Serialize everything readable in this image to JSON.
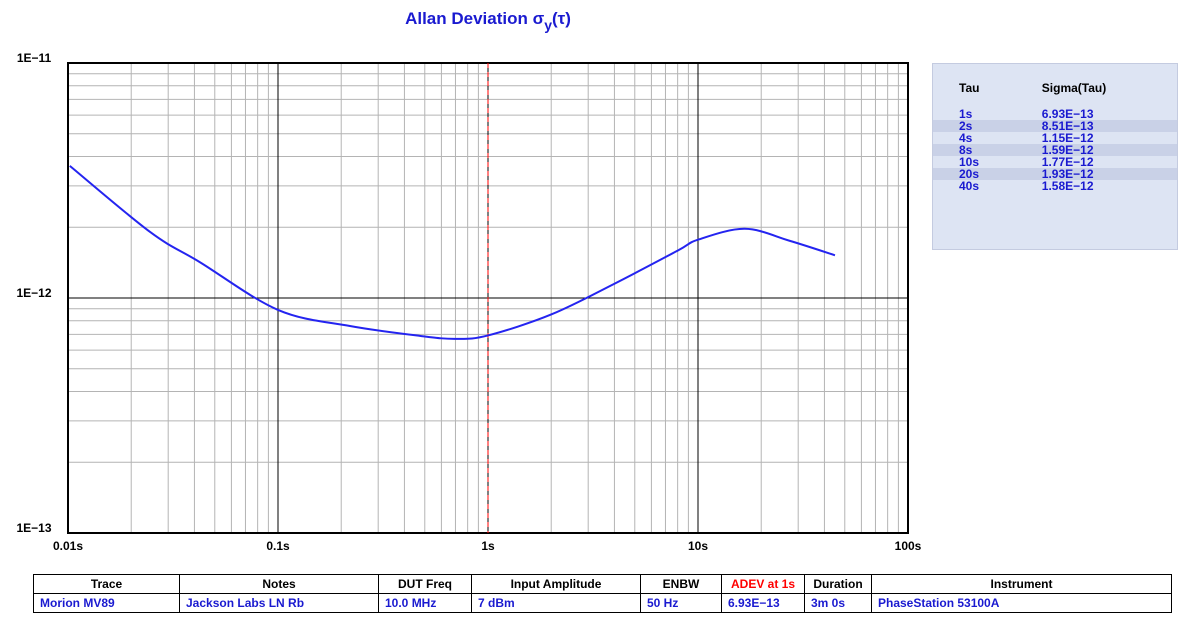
{
  "chart_data": {
    "type": "line",
    "title": [
      "Allan Deviation σ",
      "y",
      "(τ)"
    ],
    "log_x": true,
    "log_y": true,
    "grid": true,
    "minor_grid": true,
    "x": [
      0.0102,
      0.0246,
      0.0425,
      0.1,
      0.22,
      0.474,
      0.7,
      1,
      2,
      4,
      8,
      10,
      16.7,
      27.4,
      44.9
    ],
    "series": [
      {
        "name": "Morion MV89",
        "color": "#2424f0",
        "values": [
          3.65e-12,
          1.91e-12,
          1.42e-12,
          8.9e-13,
          7.6e-13,
          6.9e-13,
          6.7e-13,
          6.93e-13,
          8.51e-13,
          1.15e-12,
          1.59e-12,
          1.77e-12,
          1.97e-12,
          1.75e-12,
          1.52e-12
        ]
      }
    ],
    "marker_line": {
      "x": 1,
      "color": "#ff0000"
    },
    "xlim": [
      0.01,
      100
    ],
    "xticks": [
      {
        "value": 0.01,
        "label": "0.01s"
      },
      {
        "value": 0.1,
        "label": "0.1s"
      },
      {
        "value": 1,
        "label": "1s"
      },
      {
        "value": 10,
        "label": "10s"
      },
      {
        "value": 100,
        "label": "100s"
      }
    ],
    "ylim": [
      1e-13,
      1e-11
    ],
    "yticks": [
      {
        "value": 1e-13,
        "label": "1E−13"
      },
      {
        "value": 1e-12,
        "label": "1E−12"
      },
      {
        "value": 1e-11,
        "label": "1E−11"
      }
    ]
  },
  "sigma_table": {
    "header": [
      "Tau",
      "Sigma(Tau)"
    ],
    "rows": [
      [
        "1s",
        "6.93E−13"
      ],
      [
        "2s",
        "8.51E−13"
      ],
      [
        "4s",
        "1.15E−12"
      ],
      [
        "8s",
        "1.59E−12"
      ],
      [
        "10s",
        "1.77E−12"
      ],
      [
        "20s",
        "1.93E−12"
      ],
      [
        "40s",
        "1.58E−12"
      ]
    ]
  },
  "info_table": {
    "header": [
      "Trace",
      "Notes",
      "DUT Freq",
      "Input Amplitude",
      "ENBW",
      "ADEV at 1s",
      "Duration",
      "Instrument"
    ],
    "row": [
      "Morion MV89",
      "Jackson Labs LN Rb",
      "10.0 MHz",
      "7 dBm",
      "50 Hz",
      "6.93E−13",
      "3m 0s",
      "PhaseStation 53100A"
    ]
  }
}
